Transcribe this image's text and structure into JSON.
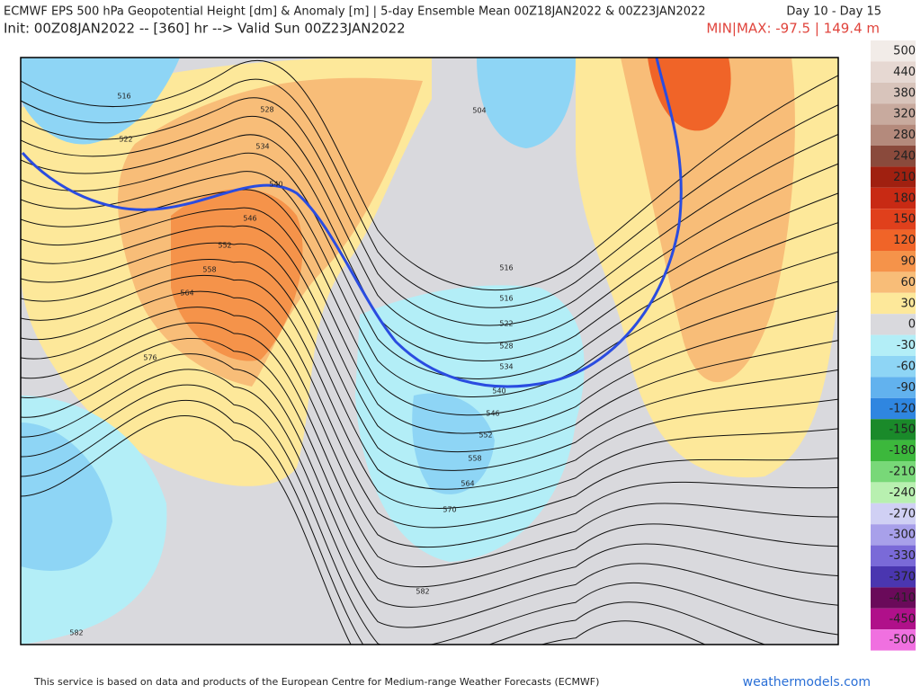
{
  "header": {
    "title": "ECMWF EPS 500 hPa Geopotential Height [dm] & Anomaly [m] | 5-day Ensemble Mean 00Z18JAN2022 & 00Z23JAN2022",
    "period": "Day 10 - Day 15",
    "init": "Init: 00Z08JAN2022 -- [360] hr --> Valid Sun 00Z23JAN2022",
    "minmax": "MIN|MAX: -97.5 | 149.4 m"
  },
  "map": {
    "contour_labels": [
      "516",
      "522",
      "528",
      "534",
      "540",
      "546",
      "552",
      "558",
      "564",
      "576",
      "504",
      "516",
      "516",
      "522",
      "528",
      "534",
      "540",
      "546",
      "552",
      "558",
      "564",
      "570",
      "582",
      "582"
    ]
  },
  "colorbar": {
    "labels": [
      500,
      440,
      380,
      320,
      280,
      240,
      210,
      180,
      150,
      120,
      90,
      60,
      30,
      0,
      -30,
      -60,
      -90,
      -120,
      -150,
      -180,
      -210,
      -240,
      -270,
      -300,
      -330,
      -370,
      -410,
      -450,
      -500
    ],
    "colors": [
      "#f2ece8",
      "#e6d8d2",
      "#d8c4bb",
      "#c8aa9e",
      "#b48a7c",
      "#8a4a3c",
      "#a02010",
      "#c82a14",
      "#e0401c",
      "#f06428",
      "#f5934a",
      "#f8bd78",
      "#fde89a",
      "#d9d9dd",
      "#b3eef7",
      "#8ed5f5",
      "#62b2ee",
      "#2f86e0",
      "#1a8a2a",
      "#3cb83c",
      "#78d878",
      "#b8f0b0",
      "#d0d0f4",
      "#a8a0ea",
      "#7a6ad8",
      "#4a36b0",
      "#6a0a5a",
      "#b0108a",
      "#f070e0"
    ]
  },
  "footer": {
    "credit": "This service is based on data and products of the European Centre for Medium-range Weather Forecasts (ECMWF)",
    "site": "weathermodels.com"
  }
}
